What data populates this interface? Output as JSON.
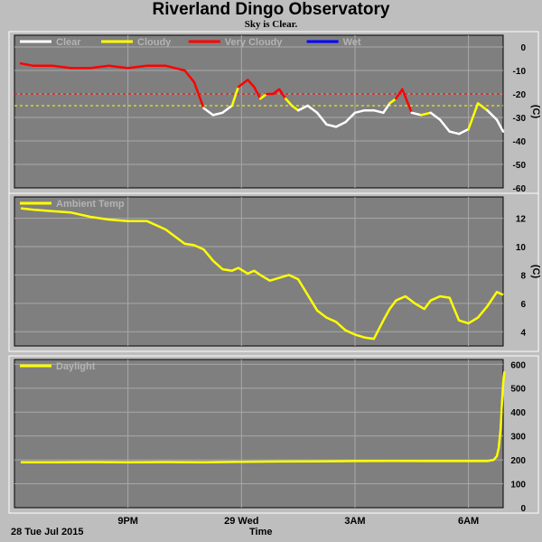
{
  "page": {
    "title": "Riverland Dingo Observatory",
    "subtitle": "Sky is Clear."
  },
  "x_axis": {
    "label": "Time",
    "date_label": "28 Tue Jul 2015",
    "ticks": [
      "9PM",
      "29 Wed",
      "3AM",
      "6AM"
    ]
  },
  "chart_data": [
    {
      "type": "line",
      "title": "",
      "ylabel": "(C)",
      "ylim": [
        -60,
        5
      ],
      "yticks": [
        0,
        -10,
        -20,
        -30,
        -40,
        -50,
        -60
      ],
      "reference_lines": [
        {
          "value": -20,
          "color": "#ff0000"
        },
        {
          "value": -25,
          "color": "#ffff00"
        }
      ],
      "legend": [
        {
          "name": "Clear",
          "color": "#ffffff"
        },
        {
          "name": "Cloudy",
          "color": "#ffff00"
        },
        {
          "name": "Very Cloudy",
          "color": "#ff0000"
        },
        {
          "name": "Wet",
          "color": "#0000ff"
        }
      ],
      "x": [
        "18:10",
        "18:30",
        "19:00",
        "19:30",
        "20:00",
        "20:30",
        "21:00",
        "21:30",
        "22:00",
        "22:30",
        "22:45",
        "23:00",
        "23:15",
        "23:30",
        "23:45",
        "23:55",
        "00:10",
        "00:20",
        "00:30",
        "00:40",
        "00:50",
        "01:00",
        "01:10",
        "01:20",
        "01:30",
        "01:45",
        "02:00",
        "02:15",
        "02:30",
        "02:45",
        "03:00",
        "03:15",
        "03:30",
        "03:45",
        "03:55",
        "04:05",
        "04:15",
        "04:30",
        "04:45",
        "05:00",
        "05:15",
        "05:30",
        "05:45",
        "06:00",
        "06:15",
        "06:30",
        "06:45",
        "06:55"
      ],
      "y": [
        -7,
        -8,
        -8,
        -9,
        -9,
        -8,
        -9,
        -8,
        -8,
        -10,
        -15,
        -26,
        -29,
        -28,
        -25,
        -17,
        -14,
        -17,
        -22,
        -20,
        -20,
        -18,
        -22,
        -25,
        -27,
        -25,
        -28,
        -33,
        -34,
        -32,
        -28,
        -27,
        -27,
        -28,
        -24,
        -22,
        -18,
        -28,
        -29,
        -28,
        -31,
        -36,
        -37,
        -35,
        -24,
        -27,
        -31,
        -36
      ],
      "segment_colors": [
        "#ff0000",
        "#ff0000",
        "#ff0000",
        "#ff0000",
        "#ff0000",
        "#ff0000",
        "#ff0000",
        "#ff0000",
        "#ff0000",
        "#ff0000",
        "#ff0000",
        "#ffffff",
        "#ffffff",
        "#ffffff",
        "#ffff00",
        "#ff0000",
        "#ff0000",
        "#ff0000",
        "#ffff00",
        "#ff0000",
        "#ff0000",
        "#ff0000",
        "#ffff00",
        "#ffff00",
        "#ffffff",
        "#ffffff",
        "#ffffff",
        "#ffffff",
        "#ffffff",
        "#ffffff",
        "#ffffff",
        "#ffffff",
        "#ffffff",
        "#ffffff",
        "#ffff00",
        "#ff0000",
        "#ff0000",
        "#ffffff",
        "#ffff00",
        "#ffffff",
        "#ffffff",
        "#ffffff",
        "#ffffff",
        "#ffff00",
        "#ffff00",
        "#ffffff",
        "#ffffff",
        "#ffffff"
      ]
    },
    {
      "type": "line",
      "title": "",
      "ylabel": "(C)",
      "ylim": [
        3,
        13.5
      ],
      "yticks": [
        4,
        6,
        8,
        10,
        12
      ],
      "series": [
        {
          "name": "Ambient Temp",
          "color": "#ffff00",
          "x": [
            "18:10",
            "18:30",
            "19:00",
            "19:30",
            "20:00",
            "20:30",
            "21:00",
            "21:30",
            "22:00",
            "22:30",
            "22:45",
            "23:00",
            "23:15",
            "23:30",
            "23:45",
            "23:55",
            "00:10",
            "00:20",
            "00:30",
            "00:45",
            "01:00",
            "01:15",
            "01:30",
            "01:45",
            "02:00",
            "02:15",
            "02:30",
            "02:45",
            "03:00",
            "03:15",
            "03:30",
            "03:45",
            "03:55",
            "04:05",
            "04:20",
            "04:35",
            "04:50",
            "05:00",
            "05:15",
            "05:30",
            "05:45",
            "06:00",
            "06:15",
            "06:30",
            "06:45",
            "06:55"
          ],
          "y": [
            12.7,
            12.6,
            12.5,
            12.4,
            12.1,
            11.9,
            11.8,
            11.8,
            11.2,
            10.2,
            10.1,
            9.8,
            9.0,
            8.4,
            8.3,
            8.5,
            8.1,
            8.3,
            8.0,
            7.6,
            7.8,
            8.0,
            7.7,
            6.6,
            5.5,
            5.0,
            4.7,
            4.1,
            3.8,
            3.6,
            3.5,
            4.8,
            5.6,
            6.2,
            6.5,
            6.0,
            5.6,
            6.2,
            6.5,
            6.4,
            4.8,
            4.6,
            5.0,
            5.8,
            6.8,
            6.6
          ]
        }
      ]
    },
    {
      "type": "line",
      "title": "",
      "ylabel": "",
      "ylim": [
        0,
        620
      ],
      "yticks": [
        0,
        100,
        200,
        300,
        400,
        500,
        600
      ],
      "series": [
        {
          "name": "Daylight",
          "color": "#ffff00",
          "x": [
            "18:10",
            "19:00",
            "20:00",
            "21:00",
            "22:00",
            "23:00",
            "00:00",
            "01:00",
            "02:00",
            "03:00",
            "04:00",
            "05:00",
            "06:00",
            "06:30",
            "06:40",
            "06:45",
            "06:48",
            "06:51",
            "06:53",
            "06:55",
            "06:57"
          ],
          "y": [
            190,
            190,
            191,
            190,
            191,
            190,
            192,
            193,
            194,
            195,
            196,
            195,
            195,
            195,
            200,
            215,
            250,
            330,
            430,
            520,
            570
          ]
        }
      ]
    }
  ]
}
